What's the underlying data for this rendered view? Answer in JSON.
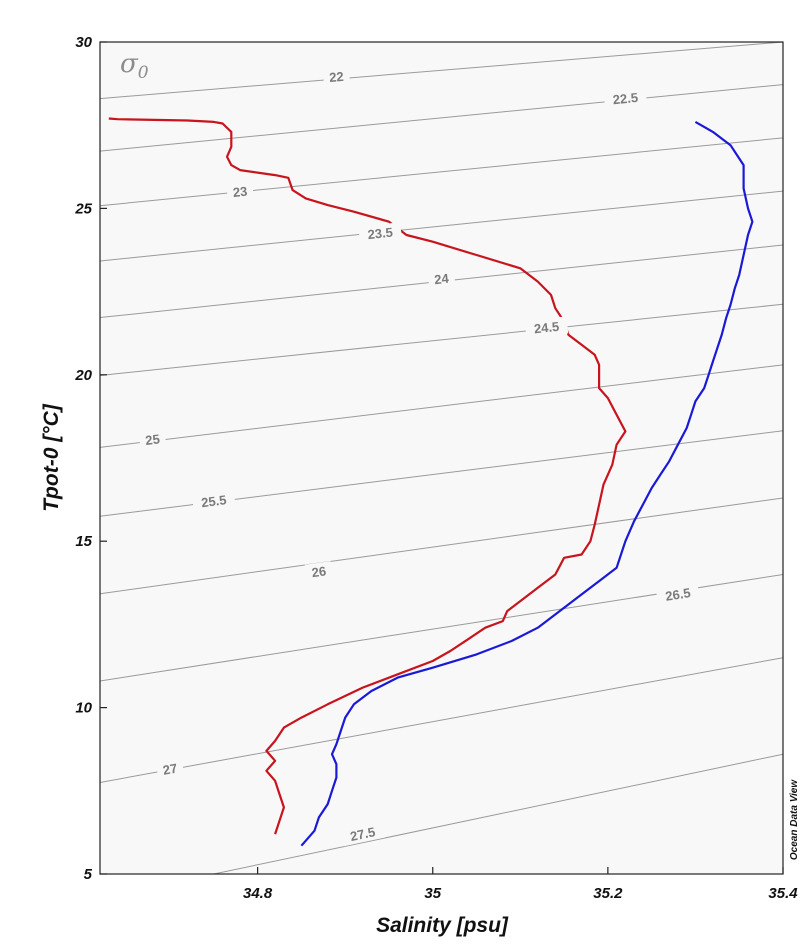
{
  "chart_data": {
    "type": "line",
    "xlabel": "Salinity [psu]",
    "ylabel": "Tpot-0 [°C]",
    "xlim": [
      34.62,
      35.4
    ],
    "ylim": [
      5,
      30
    ],
    "xticks": [
      {
        "value": 34.8,
        "label": "34.8"
      },
      {
        "value": 35.0,
        "label": "35"
      },
      {
        "value": 35.2,
        "label": "35.2"
      },
      {
        "value": 35.4,
        "label": "35.4"
      }
    ],
    "yticks": [
      {
        "value": 5,
        "label": "5"
      },
      {
        "value": 10,
        "label": "10"
      },
      {
        "value": 15,
        "label": "15"
      },
      {
        "value": 20,
        "label": "20"
      },
      {
        "value": 25,
        "label": "25"
      },
      {
        "value": 30,
        "label": "30"
      }
    ],
    "contour_variable": {
      "symbol": "σ",
      "subscript": "0"
    },
    "credit": "Ocean Data View",
    "grid": false,
    "isopycnals": [
      {
        "label": "22",
        "points": [
          [
            34.62,
            28.3
          ],
          [
            35.4,
            30.0
          ]
        ],
        "label_at": [
          34.89,
          28.95
        ]
      },
      {
        "label": "22.5",
        "points": [
          [
            34.62,
            26.72
          ],
          [
            35.4,
            28.72
          ]
        ],
        "label_at": [
          35.22,
          28.3
        ]
      },
      {
        "label": "23",
        "points": [
          [
            34.62,
            25.08
          ],
          [
            35.4,
            27.12
          ]
        ],
        "label_at": [
          34.78,
          25.5
        ]
      },
      {
        "label": "23.5",
        "points": [
          [
            34.62,
            23.42
          ],
          [
            35.4,
            25.52
          ]
        ],
        "label_at": [
          34.94,
          24.25
        ]
      },
      {
        "label": "24",
        "points": [
          [
            34.62,
            21.72
          ],
          [
            35.4,
            23.9
          ]
        ],
        "label_at": [
          35.01,
          22.88
        ]
      },
      {
        "label": "24.5",
        "points": [
          [
            34.62,
            19.98
          ],
          [
            35.4,
            22.12
          ]
        ],
        "label_at": [
          35.13,
          21.42
        ]
      },
      {
        "label": "25",
        "points": [
          [
            34.62,
            17.82
          ],
          [
            35.4,
            20.3
          ]
        ],
        "label_at": [
          34.68,
          18.05
        ]
      },
      {
        "label": "25.5",
        "points": [
          [
            34.62,
            15.75
          ],
          [
            35.4,
            18.32
          ]
        ],
        "label_at": [
          34.75,
          16.2
        ]
      },
      {
        "label": "26",
        "points": [
          [
            34.62,
            13.42
          ],
          [
            35.4,
            16.3
          ]
        ],
        "label_at": [
          34.87,
          14.08
        ]
      },
      {
        "label": "26.5",
        "points": [
          [
            34.62,
            10.8
          ],
          [
            35.4,
            14.0
          ]
        ],
        "label_at": [
          35.28,
          13.4
        ]
      },
      {
        "label": "27",
        "points": [
          [
            34.62,
            7.75
          ],
          [
            35.4,
            11.5
          ]
        ],
        "label_at": [
          34.7,
          8.15
        ]
      },
      {
        "label": "27.5",
        "points": [
          [
            34.75,
            5.0
          ],
          [
            35.4,
            8.6
          ]
        ],
        "label_at": [
          34.92,
          6.2
        ]
      }
    ],
    "series": [
      {
        "color": "#c8141c",
        "points": [
          [
            34.63,
            27.7
          ],
          [
            34.64,
            27.68
          ],
          [
            34.72,
            27.64
          ],
          [
            34.75,
            27.6
          ],
          [
            34.76,
            27.55
          ],
          [
            34.77,
            27.3
          ],
          [
            34.77,
            26.85
          ],
          [
            34.765,
            26.55
          ],
          [
            34.77,
            26.3
          ],
          [
            34.78,
            26.15
          ],
          [
            34.82,
            26.0
          ],
          [
            34.835,
            25.92
          ],
          [
            34.84,
            25.55
          ],
          [
            34.855,
            25.3
          ],
          [
            34.88,
            25.1
          ],
          [
            34.91,
            24.9
          ],
          [
            34.95,
            24.6
          ],
          [
            34.97,
            24.2
          ],
          [
            35.0,
            24.0
          ],
          [
            35.05,
            23.6
          ],
          [
            35.1,
            23.2
          ],
          [
            35.12,
            22.8
          ],
          [
            35.135,
            22.4
          ],
          [
            35.14,
            22.0
          ],
          [
            35.15,
            21.6
          ],
          [
            35.155,
            21.2
          ],
          [
            35.17,
            20.9
          ],
          [
            35.185,
            20.6
          ],
          [
            35.19,
            20.3
          ],
          [
            35.19,
            19.6
          ],
          [
            35.2,
            19.3
          ],
          [
            35.21,
            18.8
          ],
          [
            35.22,
            18.3
          ],
          [
            35.21,
            17.9
          ],
          [
            35.205,
            17.3
          ],
          [
            35.195,
            16.7
          ],
          [
            35.19,
            16.1
          ],
          [
            35.185,
            15.5
          ],
          [
            35.18,
            15.0
          ],
          [
            35.17,
            14.6
          ],
          [
            35.15,
            14.5
          ],
          [
            35.14,
            14.0
          ],
          [
            35.12,
            13.6
          ],
          [
            35.1,
            13.2
          ],
          [
            35.085,
            12.9
          ],
          [
            35.08,
            12.6
          ],
          [
            35.06,
            12.4
          ],
          [
            35.04,
            12.05
          ],
          [
            35.02,
            11.7
          ],
          [
            35.0,
            11.4
          ],
          [
            34.96,
            11.0
          ],
          [
            34.92,
            10.6
          ],
          [
            34.88,
            10.1
          ],
          [
            34.85,
            9.7
          ],
          [
            34.83,
            9.4
          ],
          [
            34.82,
            9.0
          ],
          [
            34.81,
            8.7
          ],
          [
            34.82,
            8.4
          ],
          [
            34.81,
            8.1
          ],
          [
            34.82,
            7.8
          ],
          [
            34.825,
            7.4
          ],
          [
            34.83,
            7.0
          ],
          [
            34.825,
            6.6
          ],
          [
            34.82,
            6.2
          ]
        ]
      },
      {
        "color": "#1a1ad6",
        "points": [
          [
            35.3,
            27.6
          ],
          [
            35.32,
            27.3
          ],
          [
            35.34,
            26.9
          ],
          [
            35.355,
            26.3
          ],
          [
            35.355,
            25.6
          ],
          [
            35.36,
            25.0
          ],
          [
            35.365,
            24.6
          ],
          [
            35.36,
            24.2
          ],
          [
            35.355,
            23.6
          ],
          [
            35.35,
            23.0
          ],
          [
            35.345,
            22.6
          ],
          [
            35.34,
            22.1
          ],
          [
            35.335,
            21.7
          ],
          [
            35.33,
            21.2
          ],
          [
            35.325,
            20.8
          ],
          [
            35.32,
            20.4
          ],
          [
            35.315,
            20.0
          ],
          [
            35.31,
            19.6
          ],
          [
            35.3,
            19.2
          ],
          [
            35.295,
            18.8
          ],
          [
            35.29,
            18.4
          ],
          [
            35.28,
            17.9
          ],
          [
            35.27,
            17.4
          ],
          [
            35.26,
            17.0
          ],
          [
            35.25,
            16.6
          ],
          [
            35.24,
            16.1
          ],
          [
            35.23,
            15.6
          ],
          [
            35.22,
            15.0
          ],
          [
            35.215,
            14.6
          ],
          [
            35.21,
            14.2
          ],
          [
            35.19,
            13.8
          ],
          [
            35.17,
            13.4
          ],
          [
            35.15,
            13.0
          ],
          [
            35.12,
            12.4
          ],
          [
            35.09,
            12.0
          ],
          [
            35.05,
            11.6
          ],
          [
            35.0,
            11.2
          ],
          [
            34.96,
            10.9
          ],
          [
            34.93,
            10.5
          ],
          [
            34.91,
            10.1
          ],
          [
            34.9,
            9.7
          ],
          [
            34.895,
            9.3
          ],
          [
            34.89,
            8.9
          ],
          [
            34.885,
            8.6
          ],
          [
            34.89,
            8.3
          ],
          [
            34.89,
            7.9
          ],
          [
            34.885,
            7.5
          ],
          [
            34.88,
            7.1
          ],
          [
            34.87,
            6.7
          ],
          [
            34.865,
            6.3
          ],
          [
            34.855,
            6.0
          ],
          [
            34.85,
            5.85
          ]
        ]
      }
    ]
  }
}
